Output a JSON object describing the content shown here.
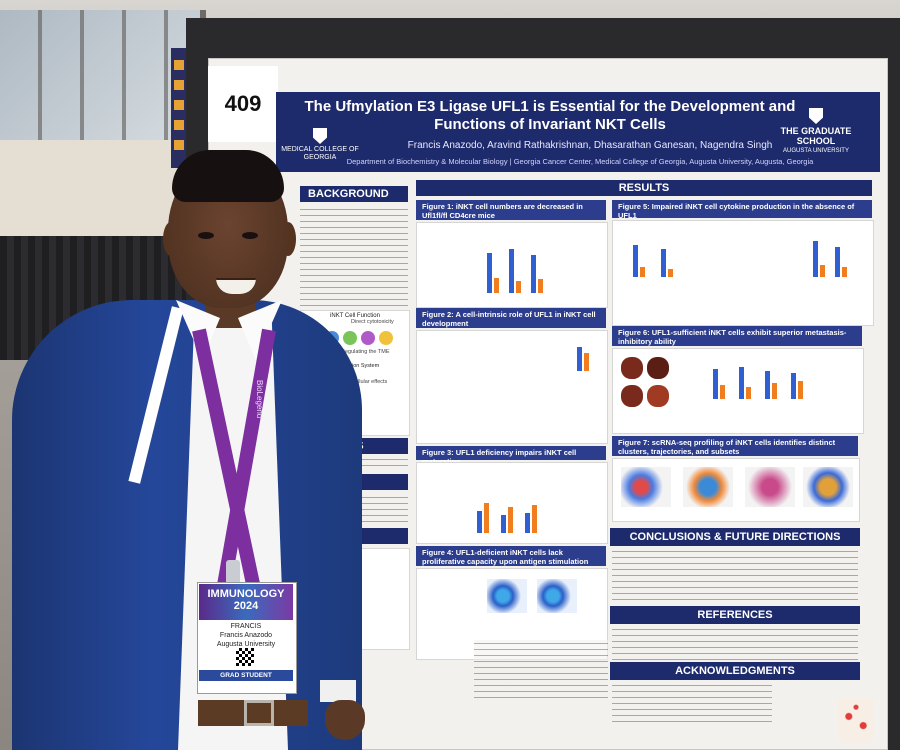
{
  "board": {
    "number": "409"
  },
  "poster": {
    "title": "The Ufmylation E3 Ligase UFL1 is Essential for the Development and Functions of Invariant NKT Cells",
    "authors": "Francis Anazodo, Aravind Rathakrishnan, Dhasarathan Ganesan, Nagendra Singh",
    "affiliation": "Department of Biochemistry & Molecular Biology | Georgia Cancer Center, Medical College of Georgia, Augusta University, Augusta, Georgia",
    "logo_left": "MEDICAL COLLEGE OF GEORGIA",
    "logo_right": "THE GRADUATE SCHOOL",
    "logo_right_sub": "AUGUSTA UNIVERSITY",
    "sections": {
      "background": "BACKGROUND",
      "results": "RESULTS",
      "hypothesis": "POTHESIS",
      "aim": "AIM",
      "methods": "THODS",
      "conclusions": "CONCLUSIONS & FUTURE DIRECTIONS",
      "references": "REFERENCES",
      "acknowledgments": "ACKNOWLEDGMENTS"
    },
    "figures": {
      "fig1": "Figure 1: iNKT cell numbers are decreased in Ufl1fl/fl CD4cre mice",
      "fig2": "Figure 2: A cell-intrinsic role of UFL1 in iNKT cell development",
      "fig3": "Figure 3: UFL1 deficiency impairs iNKT cell maturation",
      "fig4": "Figure 4: UFL1-deficient iNKT cells lack proliferative capacity upon antigen stimulation",
      "fig5": "Figure 5: Impaired iNKT cell cytokine production in the absence of UFL1",
      "fig6": "Figure 6: UFL1-sufficient iNKT cells exhibit superior metastasis-inhibitory ability",
      "fig7": "Figure 7: scRNA-seq profiling of iNKT cells identifies distinct clusters, trajectories, and subsets"
    },
    "diagram": {
      "title": "iNKT Cell Function",
      "label1": "Direct cytotoxicity",
      "label2": "Regulating the TME",
      "label3": "Protein Conjugation System",
      "label4": "Cellular effects"
    }
  },
  "badge": {
    "event": "IMMUNOLOGY 2024",
    "first_name": "FRANCIS",
    "full_name": "Francis Anazodo",
    "institution": "Augusta University",
    "type": "GRAD STUDENT",
    "lanyard": "BioLegend"
  },
  "colors": {
    "poster_header": "#1d2a6b",
    "section_bar": "#1d2a6b",
    "bar_blue": "#2f5fd0",
    "bar_orange": "#f07d1e",
    "lanyard": "#7d2fa0",
    "jacket": "#25479a"
  }
}
